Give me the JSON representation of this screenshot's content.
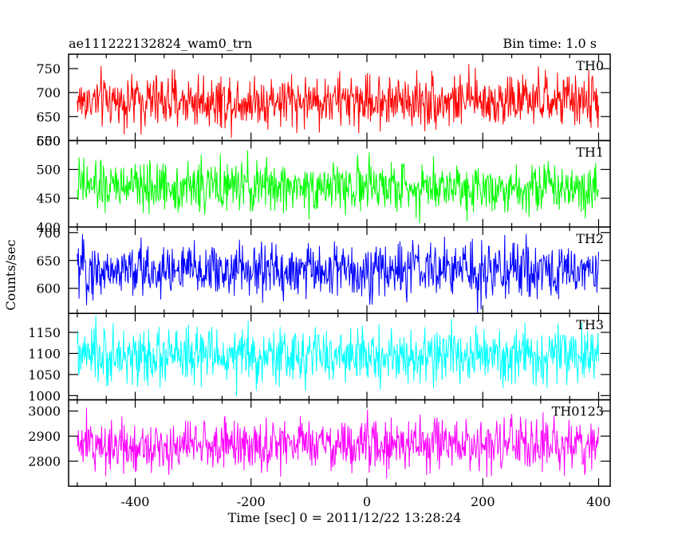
{
  "title_left": "ae111222132824_wam0_trn",
  "title_right": "Bin time: 1.0 s",
  "chart_data": {
    "type": "line",
    "xlabel": "Time [sec] 0 = 2011/12/22 13:28:24",
    "ylabel": "Counts/sec",
    "xlim": [
      -515,
      420
    ],
    "xticks": [
      -400,
      -200,
      0,
      200,
      400
    ],
    "x_start": -500,
    "x_end": 400,
    "bin_time": 1.0,
    "series": [
      {
        "name": "TH0",
        "color": "#ff0000",
        "ylim": [
          600,
          780
        ],
        "yticks": [
          600,
          650,
          700,
          750
        ],
        "mean": 683,
        "amplitude": 28
      },
      {
        "name": "TH1",
        "color": "#00ff00",
        "ylim": [
          400,
          550
        ],
        "yticks": [
          400,
          450,
          500,
          550
        ],
        "mean": 470,
        "amplitude": 22
      },
      {
        "name": "TH2",
        "color": "#0000ff",
        "ylim": [
          555,
          710
        ],
        "yticks": [
          600,
          650,
          700
        ],
        "mean": 632,
        "amplitude": 25
      },
      {
        "name": "TH3",
        "color": "#00ffff",
        "ylim": [
          990,
          1195
        ],
        "yticks": [
          1000,
          1050,
          1100,
          1150
        ],
        "mean": 1093,
        "amplitude": 33
      },
      {
        "name": "TH0123",
        "color": "#ff00ff",
        "ylim": [
          2700,
          3045
        ],
        "yticks": [
          2800,
          2900,
          3000
        ],
        "mean": 2865,
        "amplitude": 52
      }
    ]
  }
}
